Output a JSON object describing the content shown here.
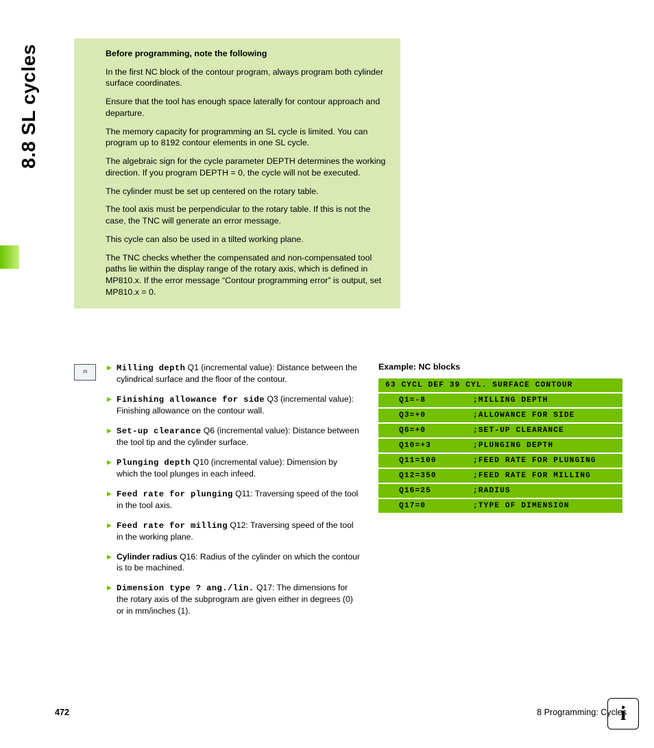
{
  "side_title": "8.8 SL cycles",
  "note": {
    "title": "Before programming, note the following",
    "paras": [
      "In the first NC block of the contour program, always program both cylinder surface coordinates.",
      "Ensure that the tool has enough space laterally for contour approach and departure.",
      "The memory capacity for programming an SL cycle is limited. You can program up to 8192 contour elements in one SL cycle.",
      "The algebraic sign for the cycle parameter DEPTH determines the working direction. If you program DEPTH = 0, the cycle will not be executed.",
      "The cylinder must be set up centered on the rotary table.",
      "The tool axis must be perpendicular to the rotary table. If this is not the case, the TNC will generate an error message.",
      "This cycle can also be used in a tilted working plane.",
      "The TNC checks whether the compensated and non-compensated tool paths lie within the display range of the rotary axis, which is defined in MP810.x. If the error message “Contour programming error” is output, set MP810.x = 0."
    ]
  },
  "param_icon_label": "39",
  "params": [
    {
      "name": "Milling depth",
      "mono": true,
      "rest": " Q1 (incremental value): Distance between the cylindrical surface and the floor of the contour."
    },
    {
      "name": "Finishing allowance for side",
      "mono": true,
      "rest": " Q3 (incremental value): Finishing allowance on the contour wall."
    },
    {
      "name": "Set-up clearance",
      "mono": true,
      "rest": " Q6 (incremental value): Distance between the tool tip and the cylinder surface."
    },
    {
      "name": "Plunging depth",
      "mono": true,
      "rest": " Q10 (incremental value): Dimension by which the tool plunges in each infeed."
    },
    {
      "name": "Feed rate for plunging",
      "mono": true,
      "rest": " Q11: Traversing speed of the tool in the tool axis."
    },
    {
      "name": "Feed rate for milling",
      "mono": true,
      "rest": " Q12: Traversing speed of the tool in the working plane."
    },
    {
      "name": "Cylinder radius",
      "mono": false,
      "rest": " Q16: Radius of the cylinder on which the contour is to be machined."
    },
    {
      "name": "Dimension type ? ang./lin.",
      "mono": true,
      "rest": " Q17: The dimensions for the rotary axis of the subprogram are given either in degrees (0) or in mm/inches (1)."
    }
  ],
  "example": {
    "title": "Example: NC blocks",
    "header": "63 CYCL DEF 39 CYL. SURFACE CONTOUR",
    "rows": [
      {
        "c1": "Q1=-8",
        "c2": ";MILLING DEPTH"
      },
      {
        "c1": "Q3=+0",
        "c2": ";ALLOWANCE FOR SIDE"
      },
      {
        "c1": "Q6=+0",
        "c2": ";SET-UP CLEARANCE"
      },
      {
        "c1": "Q10=+3",
        "c2": ";PLUNGING DEPTH"
      },
      {
        "c1": "Q11=100",
        "c2": ";FEED RATE FOR PLUNGING"
      },
      {
        "c1": "Q12=350",
        "c2": ";FEED RATE FOR MILLING"
      },
      {
        "c1": "Q16=25",
        "c2": ";RADIUS"
      },
      {
        "c1": "Q17=0",
        "c2": ";TYPE OF DIMENSION"
      }
    ]
  },
  "footer": {
    "page": "472",
    "chapter": "8 Programming: Cycles"
  },
  "colors": {
    "accent_green": "#73c000",
    "note_bg": "#d8e9b4"
  }
}
